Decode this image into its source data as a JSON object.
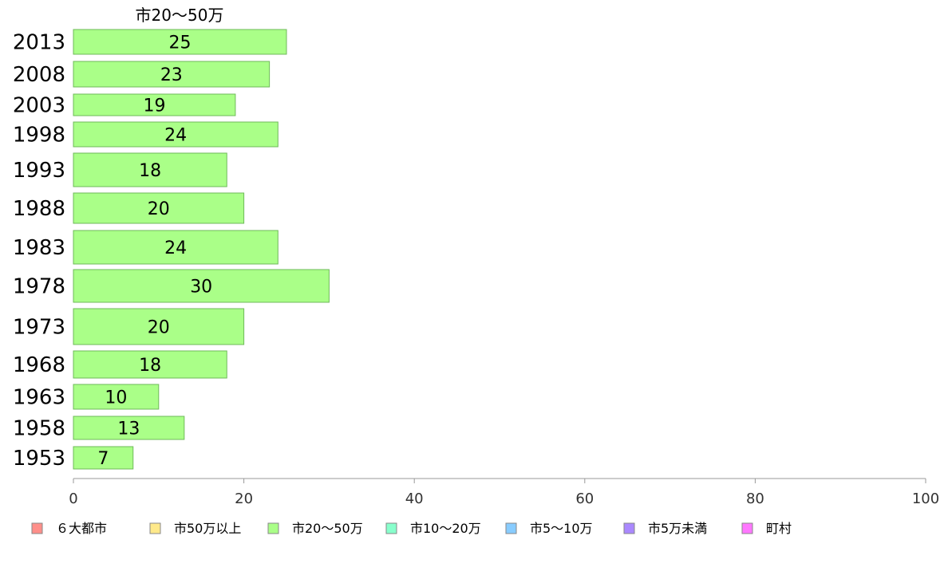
{
  "chart_data": {
    "type": "bar",
    "orientation": "horizontal",
    "series_title": "市20～50万",
    "categories": [
      "2013",
      "2008",
      "2003",
      "1998",
      "1993",
      "1988",
      "1983",
      "1978",
      "1973",
      "1968",
      "1963",
      "1958",
      "1953"
    ],
    "values": [
      25,
      23,
      19,
      24,
      18,
      20,
      24,
      30,
      20,
      18,
      10,
      13,
      7
    ],
    "value_labels": [
      "25",
      "23",
      "19",
      "24",
      "18",
      "20",
      "24",
      "30",
      "20",
      "18",
      "10",
      "13",
      "7"
    ],
    "xlim": [
      0,
      100
    ],
    "xticks": [
      "0",
      "20",
      "40",
      "60",
      "80",
      "100"
    ],
    "grid": false,
    "legend_position": "bottom",
    "colors": {
      "bar_fill": "#aaff88",
      "bar_stroke": "#6fba5a",
      "axis": "#999999"
    },
    "legend": [
      {
        "label": "６大都市",
        "color": "#ff8f8a"
      },
      {
        "label": "市50万以上",
        "color": "#ffe98a"
      },
      {
        "label": "市20～50万",
        "color": "#aaff88"
      },
      {
        "label": "市10～20万",
        "color": "#88ffcc"
      },
      {
        "label": "市5～10万",
        "color": "#88ccff"
      },
      {
        "label": "市5万未満",
        "color": "#aa88ff"
      },
      {
        "label": "町村",
        "color": "#ff77ff"
      }
    ]
  }
}
